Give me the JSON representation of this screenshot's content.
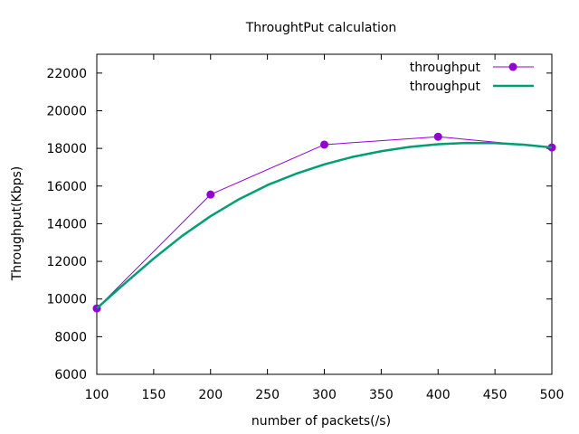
{
  "chart_data": {
    "type": "line",
    "title": "ThroughtPut calculation",
    "xlabel": "number of packets(/s)",
    "ylabel": "Throughput(Kbps)",
    "xlim": [
      100,
      500
    ],
    "ylim": [
      6000,
      23000
    ],
    "x_ticks": [
      100,
      150,
      200,
      250,
      300,
      350,
      400,
      450,
      500
    ],
    "y_ticks": [
      6000,
      8000,
      10000,
      12000,
      14000,
      16000,
      18000,
      20000,
      22000
    ],
    "grid": false,
    "legend_position": "top-right",
    "series": [
      {
        "name": "throughput",
        "style": "linespoints",
        "color": "#9400d3",
        "x": [
          100,
          200,
          300,
          400,
          500
        ],
        "y": [
          9500,
          15550,
          18200,
          18620,
          18050
        ]
      },
      {
        "name": "throughput",
        "style": "smooth line",
        "color": "#009e73",
        "x": [
          100,
          125,
          150,
          175,
          200,
          225,
          250,
          275,
          300,
          325,
          350,
          375,
          400,
          425,
          450,
          475,
          500
        ],
        "y": [
          9500,
          10850,
          12150,
          13350,
          14400,
          15300,
          16050,
          16650,
          17150,
          17550,
          17850,
          18080,
          18220,
          18290,
          18280,
          18200,
          18050
        ]
      }
    ]
  }
}
